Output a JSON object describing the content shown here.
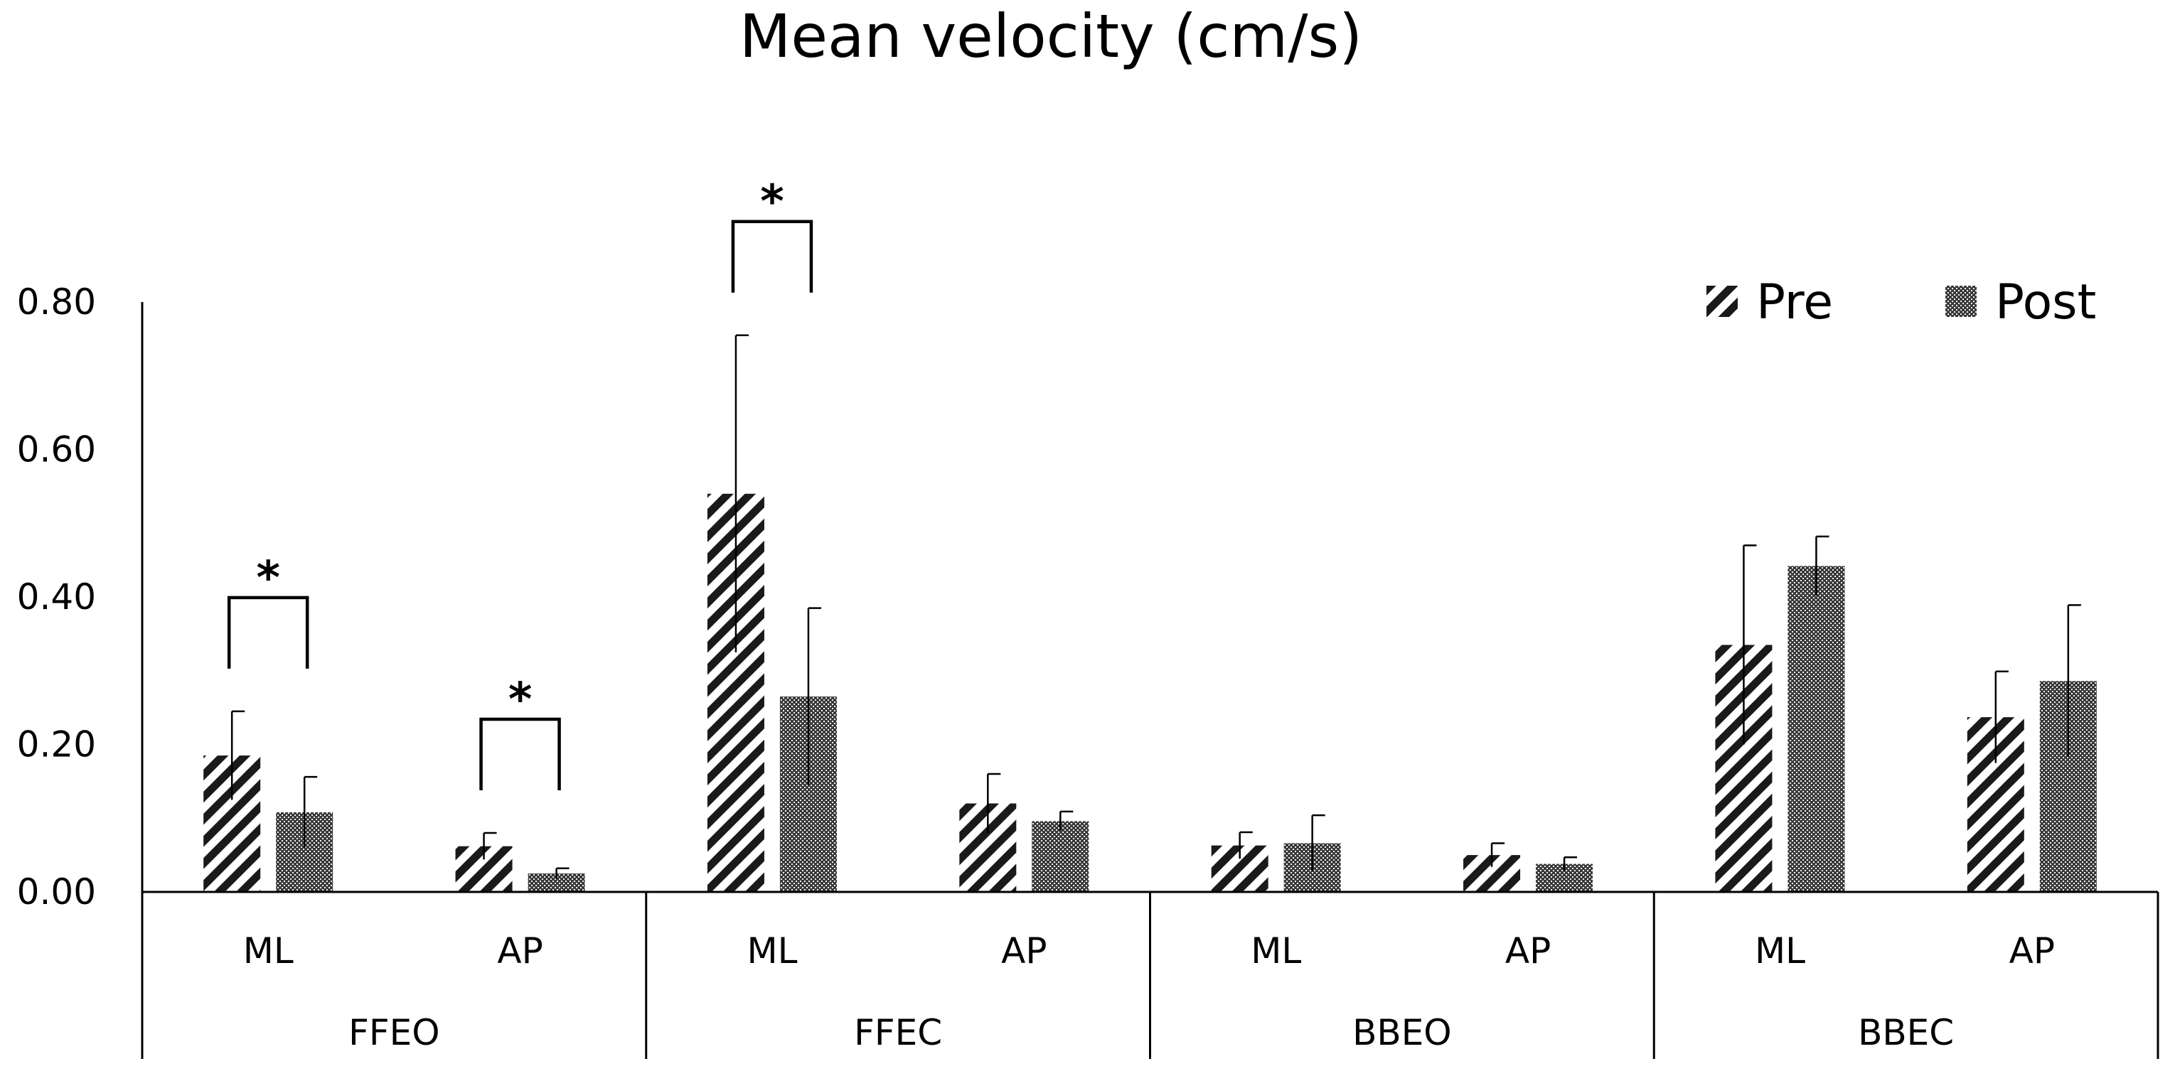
{
  "chart_data": {
    "type": "bar",
    "title": "Mean velocity (cm/s)",
    "ylim": [
      0,
      0.8
    ],
    "yticks": [
      "0.00",
      "0.20",
      "0.40",
      "0.60",
      "0.80"
    ],
    "ytick_values": [
      0,
      0.2,
      0.4,
      0.6,
      0.8
    ],
    "groups": [
      {
        "name": "FFEO",
        "categories": [
          "ML",
          "AP"
        ]
      },
      {
        "name": "FFEC",
        "categories": [
          "ML",
          "AP"
        ]
      },
      {
        "name": "BBEO",
        "categories": [
          "ML",
          "AP"
        ]
      },
      {
        "name": "BBEC",
        "categories": [
          "ML",
          "AP"
        ]
      }
    ],
    "series": [
      {
        "name": "Pre",
        "pattern": "diagonal-stripes",
        "values": [
          0.185,
          0.062,
          0.54,
          0.12,
          0.063,
          0.05,
          0.335,
          0.237
        ],
        "errors": [
          0.06,
          0.018,
          0.215,
          0.04,
          0.018,
          0.016,
          0.135,
          0.062
        ]
      },
      {
        "name": "Post",
        "pattern": "dotted-fill",
        "values": [
          0.108,
          0.025,
          0.265,
          0.096,
          0.066,
          0.038,
          0.442,
          0.286
        ],
        "errors": [
          0.048,
          0.007,
          0.12,
          0.013,
          0.038,
          0.009,
          0.04,
          0.103
        ]
      }
    ],
    "significance": [
      {
        "index": 0,
        "label": "*"
      },
      {
        "index": 1,
        "label": "*"
      },
      {
        "index": 2,
        "label": "*"
      }
    ],
    "legend_position": "top-right",
    "grid": false
  }
}
